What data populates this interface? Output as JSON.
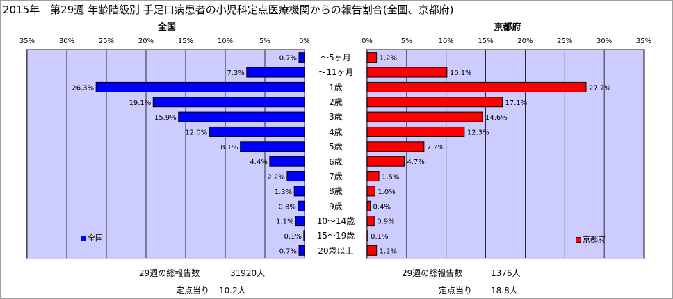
{
  "title": "2015年　第29週 年齢階級別 手足口病患者の小児科定点医療機関からの報告割合(全国、京都府)",
  "chart_data": [
    {
      "type": "bar",
      "orientation": "horizontal",
      "direction": "right-to-left",
      "title": "全国",
      "xlim": [
        0,
        35
      ],
      "x_ticks": [
        "35%",
        "30%",
        "25%",
        "20%",
        "15%",
        "10%",
        "5%",
        "0%"
      ],
      "categories": [
        "～5ヶ月",
        "～11ヶ月",
        "1歳",
        "2歳",
        "3歳",
        "4歳",
        "5歳",
        "6歳",
        "7歳",
        "8歳",
        "9歳",
        "10～14歳",
        "15～19歳",
        "20歳以上"
      ],
      "series": [
        {
          "name": "全国",
          "color": "#0000ff",
          "values": [
            0.7,
            7.3,
            26.3,
            19.1,
            15.9,
            12.0,
            8.1,
            4.4,
            2.2,
            1.3,
            0.8,
            1.1,
            0.1,
            0.7
          ],
          "labels": [
            "0.7%",
            "7.3%",
            "26.3%",
            "19.1%",
            "15.9%",
            "12.0%",
            "8.1%",
            "4.4%",
            "2.2%",
            "1.3%",
            "0.8%",
            "1.1%",
            "0.1%",
            "0.7%"
          ]
        }
      ],
      "grid": true,
      "legend_position": "bottom-left"
    },
    {
      "type": "bar",
      "orientation": "horizontal",
      "direction": "left-to-right",
      "title": "京都府",
      "xlim": [
        0,
        35
      ],
      "x_ticks": [
        "0%",
        "5%",
        "10%",
        "15%",
        "20%",
        "25%",
        "30%",
        "35%"
      ],
      "categories": [
        "～5ヶ月",
        "～11ヶ月",
        "1歳",
        "2歳",
        "3歳",
        "4歳",
        "5歳",
        "6歳",
        "7歳",
        "8歳",
        "9歳",
        "10～14歳",
        "15～19歳",
        "20歳以上"
      ],
      "series": [
        {
          "name": "京都府",
          "color": "#ff0000",
          "values": [
            1.2,
            10.1,
            27.7,
            17.1,
            14.6,
            12.3,
            7.2,
            4.7,
            1.5,
            1.0,
            0.4,
            0.9,
            0.1,
            1.2
          ],
          "labels": [
            "1.2%",
            "10.1%",
            "27.7%",
            "17.1%",
            "14.6%",
            "12.3%",
            "7.2%",
            "4.7%",
            "1.5%",
            "1.0%",
            "0.4%",
            "0.9%",
            "0.1%",
            "1.2%"
          ]
        }
      ],
      "grid": true,
      "legend_position": "bottom-right"
    }
  ],
  "footer": {
    "left_total_label": "29週の総報告数",
    "left_total_value": "31920人",
    "left_per_label": "定点当り",
    "left_per_value": "10.2人",
    "right_total_label": "29週の総報告数",
    "right_total_value": "1376人",
    "right_per_label": "定点当り",
    "right_per_value": "18.8人"
  }
}
